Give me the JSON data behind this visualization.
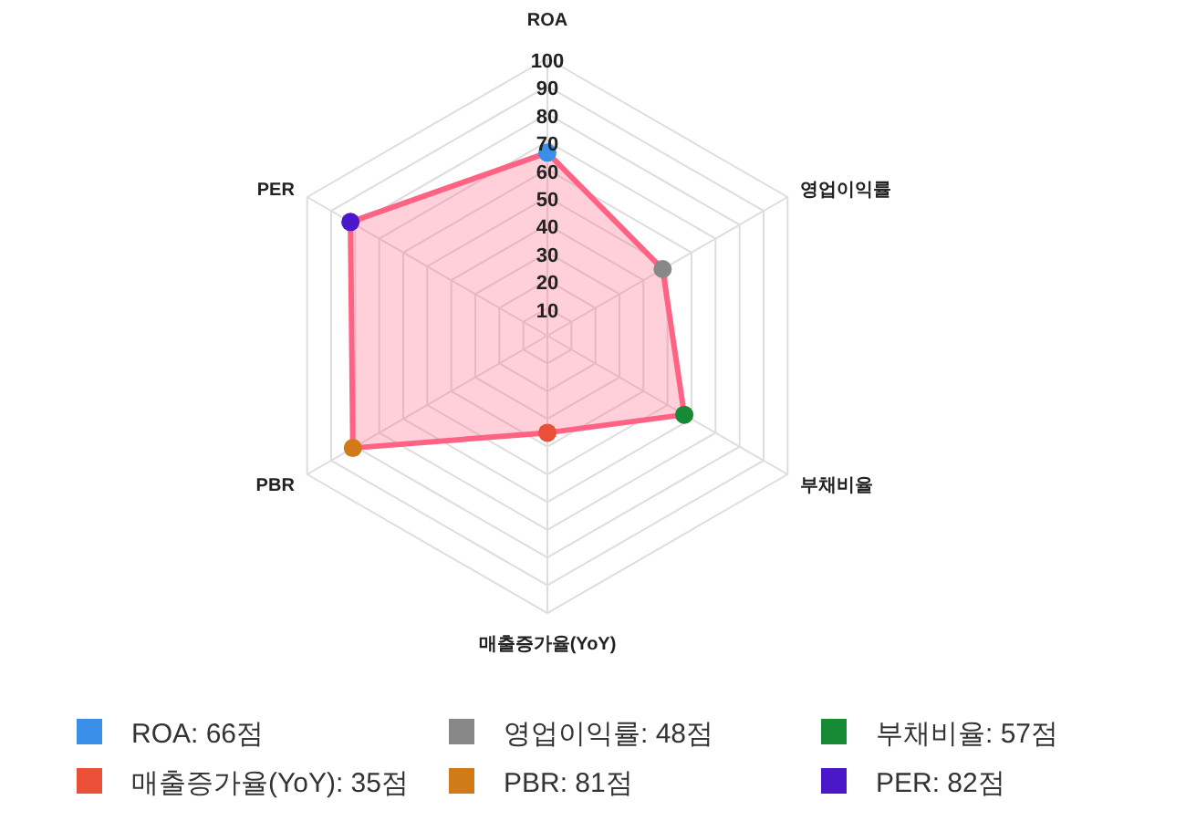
{
  "chart_data": {
    "type": "radar",
    "categories": [
      "ROA",
      "영업이익률",
      "부채비율",
      "매출증가율(YoY)",
      "PBR",
      "PER"
    ],
    "series": [
      {
        "color": "#ff6384",
        "values": [
          66,
          48,
          57,
          35,
          81,
          82
        ],
        "colors": [
          "#3a8fe8",
          "#888888",
          "#178a36",
          "#ea5038",
          "#d07a18",
          "#4a18c8"
        ]
      }
    ],
    "annotations": [
      "ROA: 66점",
      "영업이익률: 48점",
      "부채비율: 57점",
      "매출증가율(YoY): 35점",
      "PBR: 81점",
      "PER: 82점"
    ],
    "ylim": [
      0,
      100
    ],
    "yticks": [
      10,
      20,
      30,
      40,
      50,
      60,
      70,
      80,
      90,
      100
    ],
    "grid": true,
    "marker": "circle"
  }
}
